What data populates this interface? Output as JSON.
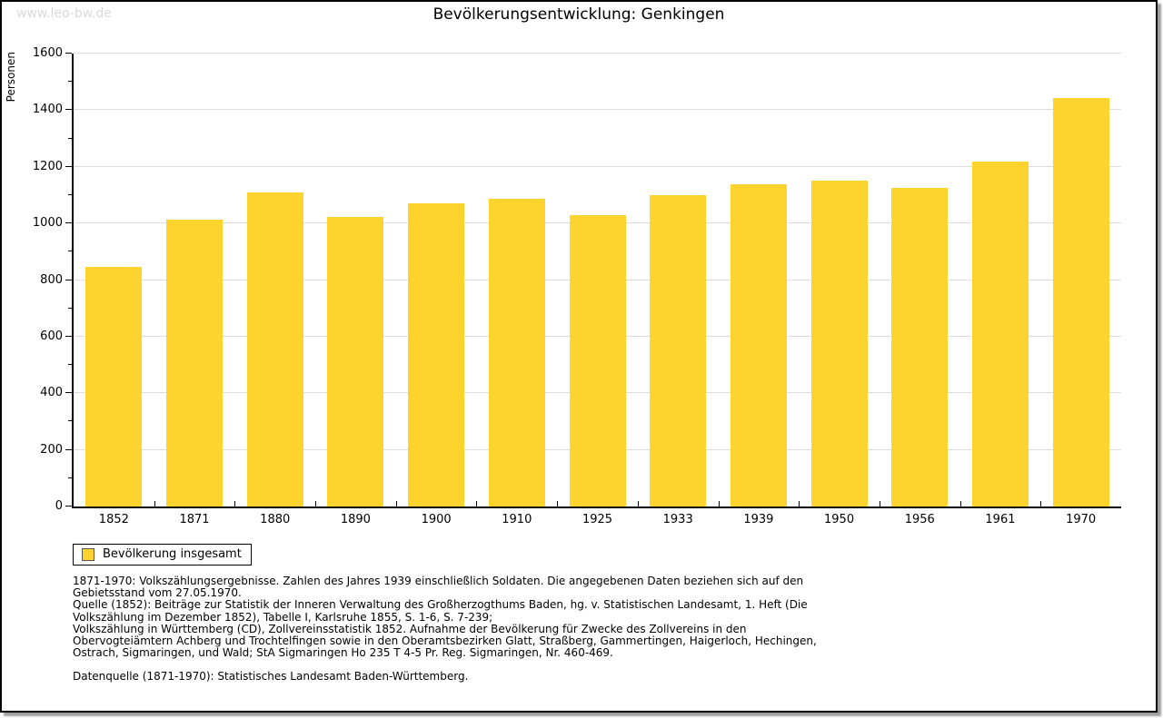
{
  "page": {
    "watermark": "www.leo-bw.de",
    "title": "Bevölkerungsentwicklung: Genkingen"
  },
  "chart_data": {
    "type": "bar",
    "title": "Bevölkerungsentwicklung: Genkingen",
    "ylabel": "Personen",
    "xlabel": "",
    "ylim": [
      0,
      1600
    ],
    "ytick_step": 200,
    "yminor_step": 100,
    "grid": true,
    "bar_color": "#fdd42e",
    "categories": [
      "1852",
      "1871",
      "1880",
      "1890",
      "1900",
      "1910",
      "1925",
      "1933",
      "1939",
      "1950",
      "1956",
      "1961",
      "1970"
    ],
    "values": [
      846,
      1012,
      1108,
      1023,
      1071,
      1086,
      1028,
      1101,
      1138,
      1150,
      1124,
      1220,
      1442
    ],
    "legend": {
      "label": "Bevölkerung insgesamt",
      "position": "bottom-left"
    }
  },
  "footer": {
    "notes": [
      "1871-1970: Volkszählungsergebnisse. Zahlen des Jahres 1939 einschließlich Soldaten. Die angegebenen Daten beziehen sich auf den Gebietsstand vom 27.05.1970.",
      "Quelle (1852): Beiträge zur Statistik der Inneren Verwaltung des Großherzogthums Baden, hg. v. Statistischen Landesamt, 1. Heft (Die Volkszählung im Dezember 1852), Tabelle I, Karlsruhe 1855, S. 1-6, S. 7-239;",
      "Volkszählung in Württemberg (CD), Zollvereinsstatistik 1852. Aufnahme der Bevölkerung für Zwecke des Zollvereins in den Obervogteiämtern Achberg und Trochtelfingen sowie in den Oberamtsbezirken Glatt, Straßberg, Gammertingen, Haigerloch, Hechingen, Ostrach, Sigmaringen, und Wald; StA Sigmaringen Ho 235 T 4-5 Pr. Reg. Sigmaringen, Nr. 460-469."
    ],
    "datasource": "Datenquelle (1871-1970): Statistisches Landesamt Baden-Württemberg."
  }
}
